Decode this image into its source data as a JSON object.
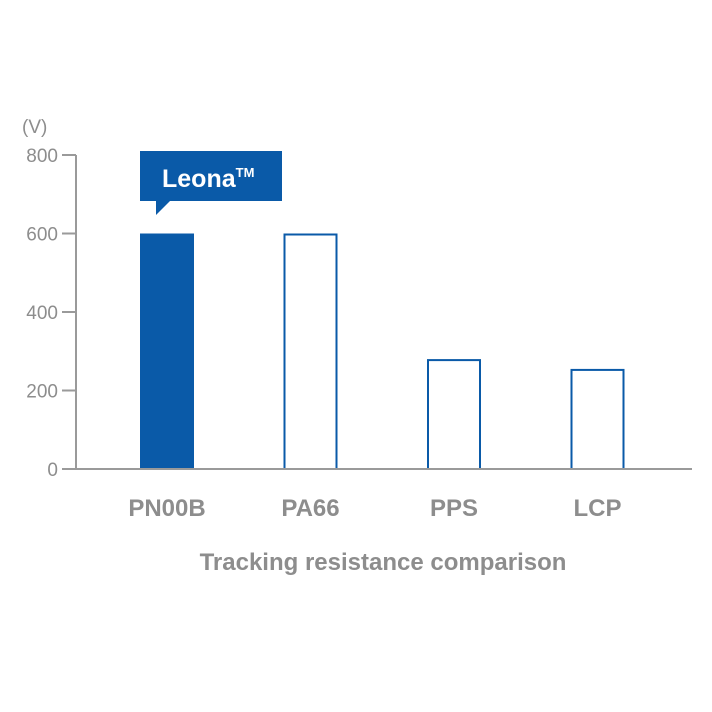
{
  "chart_data": {
    "type": "bar",
    "categories": [
      "PN00B",
      "PA66",
      "PPS",
      "LCP"
    ],
    "values": [
      600,
      600,
      280,
      255
    ],
    "unit": "(V)",
    "yticks": [
      0,
      200,
      400,
      600,
      800
    ],
    "ylim": [
      0,
      800
    ],
    "xlabel": "Tracking resistance comparison",
    "highlight_index": 0,
    "callout": {
      "text": "Leona",
      "sup": "TM"
    },
    "colors": {
      "accent": "#0a5aa8",
      "axis": "#9a9a9a",
      "text": "#8d8d8d"
    }
  }
}
